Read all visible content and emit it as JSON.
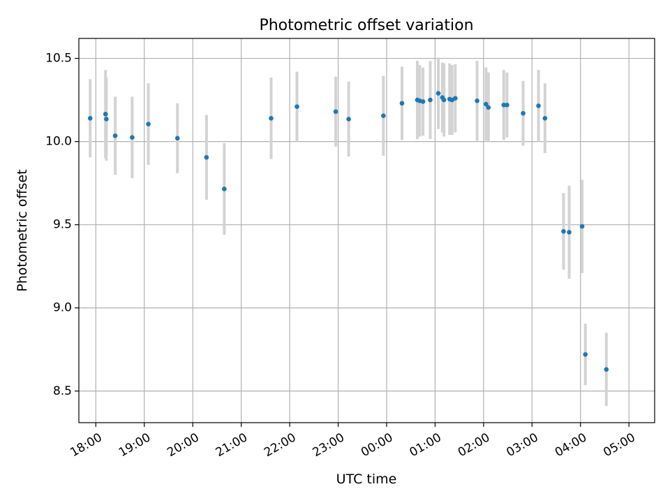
{
  "chart_data": {
    "type": "scatter",
    "title": "Photometric offset variation",
    "xlabel": "UTC time",
    "ylabel": "Photometric offset",
    "x_tick_labels": [
      "18:00",
      "19:00",
      "20:00",
      "21:00",
      "22:00",
      "23:00",
      "00:00",
      "01:00",
      "02:00",
      "03:00",
      "04:00",
      "05:00"
    ],
    "y_tick_labels": [
      "8.5",
      "9.0",
      "9.5",
      "10.0",
      "10.5"
    ],
    "y_ticks": [
      8.5,
      9.0,
      9.5,
      10.0,
      10.5
    ],
    "xlim_hours": [
      17.65,
      29.53
    ],
    "ylim": [
      8.31,
      10.62
    ],
    "grid": true,
    "colors": {
      "point": "#1f77b4",
      "errorbar": "#d3d3d3",
      "grid": "#b0b0b0"
    },
    "points": [
      {
        "time": "17:53",
        "y": 10.14,
        "err": 0.235
      },
      {
        "time": "18:12",
        "y": 10.165,
        "err": 0.265
      },
      {
        "time": "18:13",
        "y": 10.135,
        "err": 0.25
      },
      {
        "time": "18:24",
        "y": 10.035,
        "err": 0.235
      },
      {
        "time": "18:45",
        "y": 10.025,
        "err": 0.245
      },
      {
        "time": "19:05",
        "y": 10.105,
        "err": 0.245
      },
      {
        "time": "19:41",
        "y": 10.02,
        "err": 0.21
      },
      {
        "time": "20:17",
        "y": 9.905,
        "err": 0.255
      },
      {
        "time": "20:39",
        "y": 9.715,
        "err": 0.275
      },
      {
        "time": "21:37",
        "y": 10.14,
        "err": 0.245
      },
      {
        "time": "22:09",
        "y": 10.21,
        "err": 0.21
      },
      {
        "time": "22:57",
        "y": 10.18,
        "err": 0.21
      },
      {
        "time": "23:13",
        "y": 10.135,
        "err": 0.225
      },
      {
        "time": "23:56",
        "y": 10.155,
        "err": 0.24
      },
      {
        "time": "00:19",
        "y": 10.23,
        "err": 0.22
      },
      {
        "time": "00:38",
        "y": 10.25,
        "err": 0.235
      },
      {
        "time": "00:41",
        "y": 10.245,
        "err": 0.215
      },
      {
        "time": "00:45",
        "y": 10.24,
        "err": 0.205
      },
      {
        "time": "00:54",
        "y": 10.25,
        "err": 0.235
      },
      {
        "time": "01:04",
        "y": 10.29,
        "err": 0.215
      },
      {
        "time": "01:09",
        "y": 10.265,
        "err": 0.21
      },
      {
        "time": "01:11",
        "y": 10.25,
        "err": 0.22
      },
      {
        "time": "01:18",
        "y": 10.255,
        "err": 0.215
      },
      {
        "time": "01:21",
        "y": 10.25,
        "err": 0.21
      },
      {
        "time": "01:25",
        "y": 10.26,
        "err": 0.205
      },
      {
        "time": "01:52",
        "y": 10.245,
        "err": 0.24
      },
      {
        "time": "02:03",
        "y": 10.225,
        "err": 0.22
      },
      {
        "time": "02:06",
        "y": 10.205,
        "err": 0.21
      },
      {
        "time": "02:25",
        "y": 10.22,
        "err": 0.21
      },
      {
        "time": "02:29",
        "y": 10.22,
        "err": 0.195
      },
      {
        "time": "02:49",
        "y": 10.17,
        "err": 0.195
      },
      {
        "time": "03:08",
        "y": 10.215,
        "err": 0.215
      },
      {
        "time": "03:16",
        "y": 10.14,
        "err": 0.21
      },
      {
        "time": "03:39",
        "y": 9.46,
        "err": 0.23
      },
      {
        "time": "03:46",
        "y": 9.455,
        "err": 0.28
      },
      {
        "time": "04:02",
        "y": 9.49,
        "err": 0.28
      },
      {
        "time": "04:06",
        "y": 8.72,
        "err": 0.185
      },
      {
        "time": "04:32",
        "y": 8.63,
        "err": 0.22
      }
    ]
  }
}
